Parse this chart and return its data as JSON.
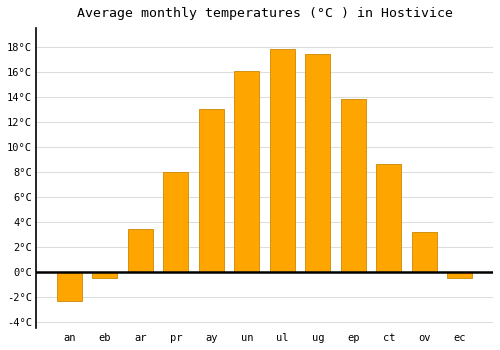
{
  "title": "Average monthly temperatures (°C ) in Hostivice",
  "months": [
    "an",
    "eb",
    "ar",
    "pr",
    "ay",
    "un",
    "ul",
    "ug",
    "ep",
    "ct",
    "ov",
    "ec"
  ],
  "values": [
    -2.3,
    -0.5,
    3.4,
    8.0,
    13.0,
    16.1,
    17.8,
    17.4,
    13.8,
    8.6,
    3.2,
    -0.5
  ],
  "bar_color": "#FFA500",
  "bar_edge_color": "#CC8800",
  "ylim": [
    -4.5,
    19.5
  ],
  "yticks": [
    -4,
    -2,
    0,
    2,
    4,
    6,
    8,
    10,
    12,
    14,
    16,
    18
  ],
  "ytick_labels": [
    "-4°C",
    "-2°C",
    "0°C",
    "2°C",
    "4°C",
    "6°C",
    "8°C",
    "10°C",
    "12°C",
    "14°C",
    "16°C",
    "18°C"
  ],
  "background_color": "#ffffff",
  "grid_color": "#dddddd",
  "title_fontsize": 9.5,
  "tick_fontsize": 7.5,
  "bar_width": 0.7
}
